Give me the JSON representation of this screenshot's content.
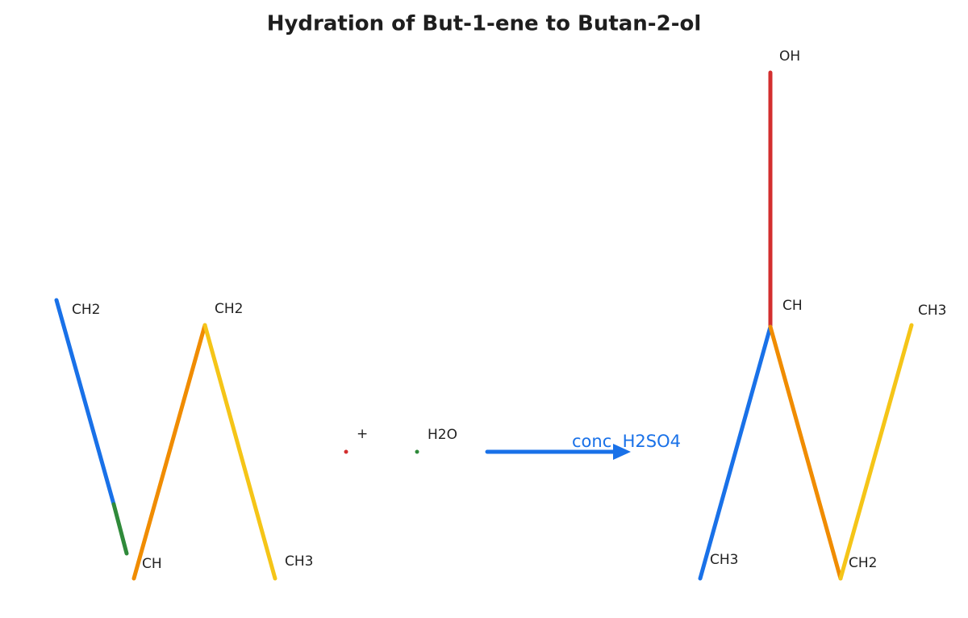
{
  "title": "Hydration of But-1-ene to Butan-2-ol",
  "reactant": {
    "labels": [
      "CH2",
      "CH2",
      "CH",
      "CH3"
    ]
  },
  "reagent": {
    "plus": "+",
    "water": "H2O",
    "catalyst": "conc. H2SO4"
  },
  "product": {
    "labels": [
      "OH",
      "CH",
      "CH3",
      "CH3",
      "CH2"
    ]
  }
}
